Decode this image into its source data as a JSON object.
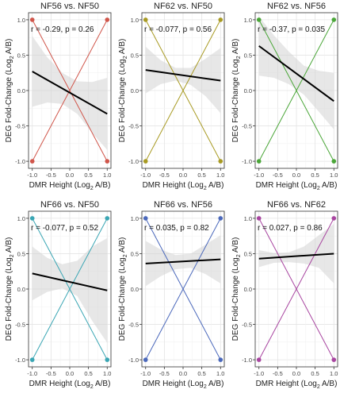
{
  "figure": {
    "y_label_lead": "DEG Fold-Change (Log",
    "y_label_sub": "2",
    "y_label_tail": " A/B)",
    "x_label_lead": "DMR Height (Log",
    "x_label_sub": "2",
    "x_label_tail": " A/B)"
  },
  "chart_data": [
    {
      "type": "scatter",
      "title": "NF56 vs. NF50",
      "annotation": "r = -0.29, p = 0.26",
      "color": "#d0554a",
      "points": [
        {
          "x": -1,
          "y": 1
        },
        {
          "x": -1,
          "y": -1
        },
        {
          "x": 1,
          "y": 1
        },
        {
          "x": 1,
          "y": -1
        }
      ],
      "fit": {
        "x": [
          -1,
          1
        ],
        "y": [
          0.27,
          -0.33
        ]
      },
      "band": {
        "x": [
          -1,
          -0.6,
          -0.2,
          0.2,
          0.6,
          1
        ],
        "upper": [
          0.77,
          0.47,
          0.25,
          0.13,
          0.12,
          0.18
        ],
        "lower": [
          -0.23,
          -0.17,
          -0.19,
          -0.33,
          -0.6,
          -0.84
        ]
      },
      "xticks": [
        "-1.0",
        "-0.5",
        "0.0",
        "0.5",
        "1.0"
      ],
      "yticks": [
        "1.0",
        "0.5",
        "0.0",
        "-0.5",
        "-1.0"
      ],
      "xlim": [
        -1.1,
        1.1
      ],
      "ylim": [
        -1.1,
        1.1
      ],
      "grid": true
    },
    {
      "type": "scatter",
      "title": "NF62 vs. NF50",
      "annotation": "r = -0.077, p = 0.56",
      "color": "#a89a22",
      "points": [
        {
          "x": -1,
          "y": 1
        },
        {
          "x": -1,
          "y": -1
        },
        {
          "x": 1,
          "y": 1
        },
        {
          "x": 1,
          "y": -1
        }
      ],
      "fit": {
        "x": [
          -1,
          1
        ],
        "y": [
          0.29,
          0.14
        ]
      },
      "band": {
        "x": [
          -1,
          -0.6,
          -0.2,
          0.2,
          0.6,
          1
        ],
        "upper": [
          0.62,
          0.43,
          0.32,
          0.32,
          0.45,
          0.6
        ],
        "lower": [
          -0.04,
          0.09,
          0.14,
          0.08,
          -0.08,
          -0.32
        ]
      },
      "xticks": [
        "-1.0",
        "-0.5",
        "0.0",
        "0.5",
        "1.0"
      ],
      "yticks": [
        "1.0",
        "0.5",
        "0.0",
        "-0.5",
        "-1.0"
      ],
      "xlim": [
        -1.1,
        1.1
      ],
      "ylim": [
        -1.1,
        1.1
      ],
      "grid": true
    },
    {
      "type": "scatter",
      "title": "NF62 vs. NF56",
      "annotation": "r = -0.37, p = 0.035",
      "color": "#4aa638",
      "points": [
        {
          "x": -1,
          "y": 1
        },
        {
          "x": -1,
          "y": -1
        },
        {
          "x": 1,
          "y": 1
        },
        {
          "x": 1,
          "y": -1
        }
      ],
      "fit": {
        "x": [
          -1,
          1
        ],
        "y": [
          0.63,
          -0.15
        ]
      },
      "band": {
        "x": [
          -1,
          -0.6,
          -0.2,
          0.2,
          0.6,
          1
        ],
        "upper": [
          1.05,
          0.78,
          0.55,
          0.35,
          0.28,
          0.25
        ],
        "lower": [
          0.21,
          0.18,
          0.09,
          -0.06,
          -0.3,
          -0.55
        ]
      },
      "xticks": [
        "-1.0",
        "-0.5",
        "0.0",
        "0.5",
        "1.0"
      ],
      "yticks": [
        "1.0",
        "0.5",
        "0.0",
        "-0.5",
        "-1.0"
      ],
      "xlim": [
        -1.1,
        1.1
      ],
      "ylim": [
        -1.1,
        1.1
      ],
      "grid": true
    },
    {
      "type": "scatter",
      "title": "NF66 vs. NF50",
      "annotation": "r = -0.077, p = 0.52",
      "color": "#3aa6b4",
      "points": [
        {
          "x": -1,
          "y": 1
        },
        {
          "x": -1,
          "y": -1
        },
        {
          "x": 1,
          "y": 1
        },
        {
          "x": 1,
          "y": -1
        }
      ],
      "fit": {
        "x": [
          -1,
          1
        ],
        "y": [
          0.22,
          -0.02
        ]
      },
      "band": {
        "x": [
          -1,
          -0.6,
          -0.2,
          0.2,
          0.6,
          1
        ],
        "upper": [
          0.6,
          0.44,
          0.35,
          0.4,
          0.6,
          0.72
        ],
        "lower": [
          -0.16,
          -0.04,
          0.01,
          -0.1,
          -0.45,
          -0.76
        ]
      },
      "xticks": [
        "-1.0",
        "-0.5",
        "0.0",
        "0.5",
        "1.0"
      ],
      "yticks": [
        "1.0",
        "0.5",
        "0.0",
        "-0.5",
        "-1.0"
      ],
      "xlim": [
        -1.1,
        1.1
      ],
      "ylim": [
        -1.1,
        1.1
      ],
      "grid": true
    },
    {
      "type": "scatter",
      "title": "NF66 vs. NF56",
      "annotation": "r = 0.035, p = 0.82",
      "color": "#4a68bb",
      "points": [
        {
          "x": -1,
          "y": 1
        },
        {
          "x": -1,
          "y": -1
        },
        {
          "x": 1,
          "y": 1
        },
        {
          "x": 1,
          "y": -1
        }
      ],
      "fit": {
        "x": [
          -1,
          1
        ],
        "y": [
          0.36,
          0.42
        ]
      },
      "band": {
        "x": [
          -1,
          -0.6,
          -0.2,
          0.2,
          0.6,
          1
        ],
        "upper": [
          0.68,
          0.56,
          0.48,
          0.5,
          0.63,
          0.76
        ],
        "lower": [
          0.04,
          0.18,
          0.28,
          0.3,
          0.21,
          0.08
        ]
      },
      "xticks": [
        "-1.0",
        "-0.5",
        "0.0",
        "0.5",
        "1.0"
      ],
      "yticks": [
        "1.0",
        "0.5",
        "0.0",
        "-0.5",
        "-1.0"
      ],
      "xlim": [
        -1.1,
        1.1
      ],
      "ylim": [
        -1.1,
        1.1
      ],
      "grid": true
    },
    {
      "type": "scatter",
      "title": "NF66 vs. NF62",
      "annotation": "r = 0.027, p = 0.86",
      "color": "#a845a0",
      "points": [
        {
          "x": -1,
          "y": 1
        },
        {
          "x": -1,
          "y": -1
        },
        {
          "x": 1,
          "y": 1
        },
        {
          "x": 1,
          "y": -1
        }
      ],
      "fit": {
        "x": [
          -1,
          1
        ],
        "y": [
          0.43,
          0.5
        ]
      },
      "band": {
        "x": [
          -1,
          -0.6,
          -0.2,
          0.2,
          0.6,
          1
        ],
        "upper": [
          0.55,
          0.51,
          0.52,
          0.6,
          0.76,
          0.92
        ],
        "lower": [
          0.31,
          0.37,
          0.38,
          0.36,
          0.3,
          0.08
        ]
      },
      "xticks": [
        "-1.0",
        "-0.5",
        "0.0",
        "0.5",
        "1.0"
      ],
      "yticks": [
        "1.0",
        "0.5",
        "0.0",
        "-0.5",
        "-1.0"
      ],
      "xlim": [
        -1.1,
        1.1
      ],
      "ylim": [
        -1.1,
        1.1
      ],
      "grid": true
    }
  ]
}
